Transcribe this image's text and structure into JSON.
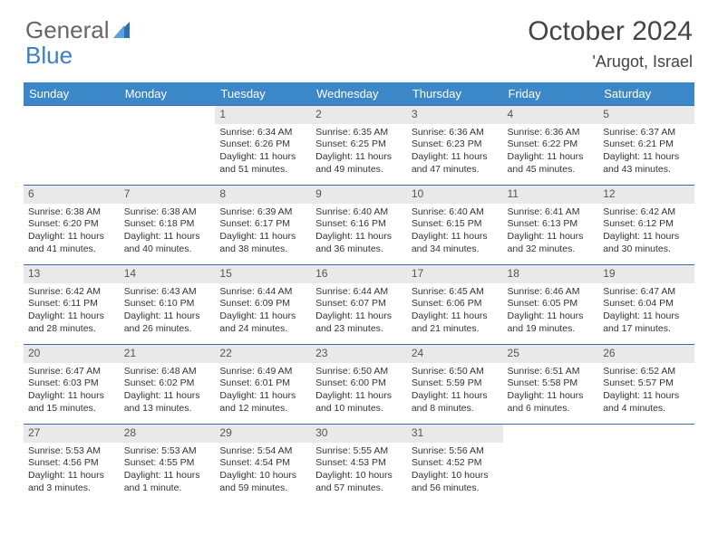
{
  "logo": {
    "word1": "General",
    "word2": "Blue"
  },
  "title": "October 2024",
  "location": "'Arugot, Israel",
  "columns": [
    "Sunday",
    "Monday",
    "Tuesday",
    "Wednesday",
    "Thursday",
    "Friday",
    "Saturday"
  ],
  "colors": {
    "header_bg": "#3b87c8",
    "header_text": "#ffffff",
    "daynum_bg": "#e9e9e9",
    "row_border": "#3b6fa8",
    "logo_gray": "#666666",
    "logo_blue": "#3b7fc4"
  },
  "weeks": [
    [
      {
        "empty": true
      },
      {
        "empty": true
      },
      {
        "day": "1",
        "sunrise": "Sunrise: 6:34 AM",
        "sunset": "Sunset: 6:26 PM",
        "daylight": "Daylight: 11 hours and 51 minutes."
      },
      {
        "day": "2",
        "sunrise": "Sunrise: 6:35 AM",
        "sunset": "Sunset: 6:25 PM",
        "daylight": "Daylight: 11 hours and 49 minutes."
      },
      {
        "day": "3",
        "sunrise": "Sunrise: 6:36 AM",
        "sunset": "Sunset: 6:23 PM",
        "daylight": "Daylight: 11 hours and 47 minutes."
      },
      {
        "day": "4",
        "sunrise": "Sunrise: 6:36 AM",
        "sunset": "Sunset: 6:22 PM",
        "daylight": "Daylight: 11 hours and 45 minutes."
      },
      {
        "day": "5",
        "sunrise": "Sunrise: 6:37 AM",
        "sunset": "Sunset: 6:21 PM",
        "daylight": "Daylight: 11 hours and 43 minutes."
      }
    ],
    [
      {
        "day": "6",
        "sunrise": "Sunrise: 6:38 AM",
        "sunset": "Sunset: 6:20 PM",
        "daylight": "Daylight: 11 hours and 41 minutes."
      },
      {
        "day": "7",
        "sunrise": "Sunrise: 6:38 AM",
        "sunset": "Sunset: 6:18 PM",
        "daylight": "Daylight: 11 hours and 40 minutes."
      },
      {
        "day": "8",
        "sunrise": "Sunrise: 6:39 AM",
        "sunset": "Sunset: 6:17 PM",
        "daylight": "Daylight: 11 hours and 38 minutes."
      },
      {
        "day": "9",
        "sunrise": "Sunrise: 6:40 AM",
        "sunset": "Sunset: 6:16 PM",
        "daylight": "Daylight: 11 hours and 36 minutes."
      },
      {
        "day": "10",
        "sunrise": "Sunrise: 6:40 AM",
        "sunset": "Sunset: 6:15 PM",
        "daylight": "Daylight: 11 hours and 34 minutes."
      },
      {
        "day": "11",
        "sunrise": "Sunrise: 6:41 AM",
        "sunset": "Sunset: 6:13 PM",
        "daylight": "Daylight: 11 hours and 32 minutes."
      },
      {
        "day": "12",
        "sunrise": "Sunrise: 6:42 AM",
        "sunset": "Sunset: 6:12 PM",
        "daylight": "Daylight: 11 hours and 30 minutes."
      }
    ],
    [
      {
        "day": "13",
        "sunrise": "Sunrise: 6:42 AM",
        "sunset": "Sunset: 6:11 PM",
        "daylight": "Daylight: 11 hours and 28 minutes."
      },
      {
        "day": "14",
        "sunrise": "Sunrise: 6:43 AM",
        "sunset": "Sunset: 6:10 PM",
        "daylight": "Daylight: 11 hours and 26 minutes."
      },
      {
        "day": "15",
        "sunrise": "Sunrise: 6:44 AM",
        "sunset": "Sunset: 6:09 PM",
        "daylight": "Daylight: 11 hours and 24 minutes."
      },
      {
        "day": "16",
        "sunrise": "Sunrise: 6:44 AM",
        "sunset": "Sunset: 6:07 PM",
        "daylight": "Daylight: 11 hours and 23 minutes."
      },
      {
        "day": "17",
        "sunrise": "Sunrise: 6:45 AM",
        "sunset": "Sunset: 6:06 PM",
        "daylight": "Daylight: 11 hours and 21 minutes."
      },
      {
        "day": "18",
        "sunrise": "Sunrise: 6:46 AM",
        "sunset": "Sunset: 6:05 PM",
        "daylight": "Daylight: 11 hours and 19 minutes."
      },
      {
        "day": "19",
        "sunrise": "Sunrise: 6:47 AM",
        "sunset": "Sunset: 6:04 PM",
        "daylight": "Daylight: 11 hours and 17 minutes."
      }
    ],
    [
      {
        "day": "20",
        "sunrise": "Sunrise: 6:47 AM",
        "sunset": "Sunset: 6:03 PM",
        "daylight": "Daylight: 11 hours and 15 minutes."
      },
      {
        "day": "21",
        "sunrise": "Sunrise: 6:48 AM",
        "sunset": "Sunset: 6:02 PM",
        "daylight": "Daylight: 11 hours and 13 minutes."
      },
      {
        "day": "22",
        "sunrise": "Sunrise: 6:49 AM",
        "sunset": "Sunset: 6:01 PM",
        "daylight": "Daylight: 11 hours and 12 minutes."
      },
      {
        "day": "23",
        "sunrise": "Sunrise: 6:50 AM",
        "sunset": "Sunset: 6:00 PM",
        "daylight": "Daylight: 11 hours and 10 minutes."
      },
      {
        "day": "24",
        "sunrise": "Sunrise: 6:50 AM",
        "sunset": "Sunset: 5:59 PM",
        "daylight": "Daylight: 11 hours and 8 minutes."
      },
      {
        "day": "25",
        "sunrise": "Sunrise: 6:51 AM",
        "sunset": "Sunset: 5:58 PM",
        "daylight": "Daylight: 11 hours and 6 minutes."
      },
      {
        "day": "26",
        "sunrise": "Sunrise: 6:52 AM",
        "sunset": "Sunset: 5:57 PM",
        "daylight": "Daylight: 11 hours and 4 minutes."
      }
    ],
    [
      {
        "day": "27",
        "sunrise": "Sunrise: 5:53 AM",
        "sunset": "Sunset: 4:56 PM",
        "daylight": "Daylight: 11 hours and 3 minutes."
      },
      {
        "day": "28",
        "sunrise": "Sunrise: 5:53 AM",
        "sunset": "Sunset: 4:55 PM",
        "daylight": "Daylight: 11 hours and 1 minute."
      },
      {
        "day": "29",
        "sunrise": "Sunrise: 5:54 AM",
        "sunset": "Sunset: 4:54 PM",
        "daylight": "Daylight: 10 hours and 59 minutes."
      },
      {
        "day": "30",
        "sunrise": "Sunrise: 5:55 AM",
        "sunset": "Sunset: 4:53 PM",
        "daylight": "Daylight: 10 hours and 57 minutes."
      },
      {
        "day": "31",
        "sunrise": "Sunrise: 5:56 AM",
        "sunset": "Sunset: 4:52 PM",
        "daylight": "Daylight: 10 hours and 56 minutes."
      },
      {
        "empty": true
      },
      {
        "empty": true
      }
    ]
  ]
}
